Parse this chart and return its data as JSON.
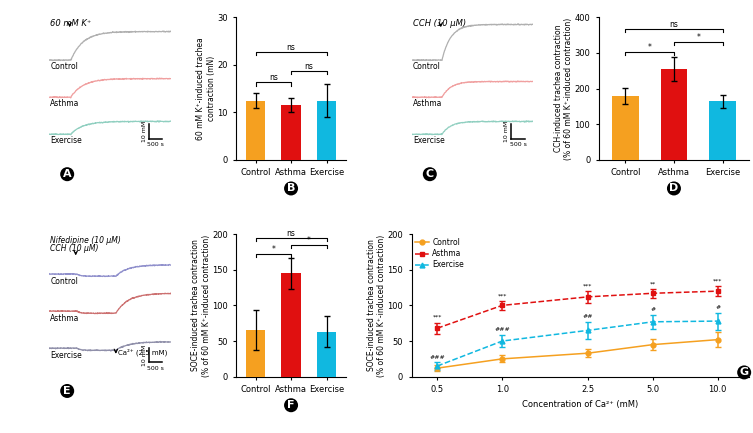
{
  "colors": {
    "control": "#F5A020",
    "asthma": "#E01010",
    "exercise": "#10B8E0",
    "ctrl_trace_A": "#B0B0B0",
    "asth_trace_A": "#F0A0A0",
    "exer_trace_A": "#90CFC0",
    "ctrl_trace_E": "#9090CC",
    "asth_trace_E": "#CC7070",
    "exer_trace_E": "#9090AA"
  },
  "panel_B": {
    "categories": [
      "Control",
      "Asthma",
      "Exercise"
    ],
    "means": [
      12.5,
      11.5,
      12.5
    ],
    "errors": [
      1.5,
      1.5,
      3.5
    ],
    "ylabel": "60 mM K⁺-induced trachea\ncontraction (mN)",
    "ylim": [
      0,
      30
    ],
    "yticks": [
      0,
      10,
      20,
      30
    ]
  },
  "panel_D": {
    "categories": [
      "Control",
      "Asthma",
      "Exercise"
    ],
    "means": [
      180,
      255,
      165
    ],
    "errors": [
      22,
      33,
      18
    ],
    "ylabel": "CCH-induced trachea contraction\n(% of 60 mM K⁺-induced contraction)",
    "ylim": [
      0,
      400
    ],
    "yticks": [
      0,
      100,
      200,
      300,
      400
    ]
  },
  "panel_F": {
    "categories": [
      "Control",
      "Asthma",
      "Exercise"
    ],
    "means": [
      65,
      145,
      63
    ],
    "errors": [
      28,
      22,
      22
    ],
    "ylabel": "SOCE-induced trachea contraction\n(% of 60 mM K⁺-induced contraction)",
    "ylim": [
      0,
      200
    ],
    "yticks": [
      0,
      50,
      100,
      150,
      200
    ]
  },
  "panel_G": {
    "x": [
      0.5,
      1.0,
      2.5,
      5.0,
      10.0
    ],
    "control_mean": [
      12,
      25,
      33,
      45,
      52
    ],
    "control_err": [
      4,
      5,
      6,
      8,
      10
    ],
    "asthma_mean": [
      68,
      100,
      112,
      117,
      120
    ],
    "asthma_err": [
      8,
      6,
      8,
      6,
      7
    ],
    "exercise_mean": [
      15,
      50,
      65,
      77,
      78
    ],
    "exercise_err": [
      5,
      8,
      12,
      10,
      12
    ],
    "xlabel": "Concentration of Ca²⁺ (mM)",
    "ylabel": "SOCE-induced trachea contraction\n(% of 60 mM K⁺-induced contraction)",
    "ylim": [
      0,
      200
    ],
    "yticks": [
      0,
      50,
      100,
      150,
      200
    ],
    "sig_asthma": [
      "***",
      "***",
      "***",
      "**",
      "***"
    ],
    "sig_exercise": [
      "###",
      "###",
      "##",
      "#",
      "#"
    ]
  }
}
